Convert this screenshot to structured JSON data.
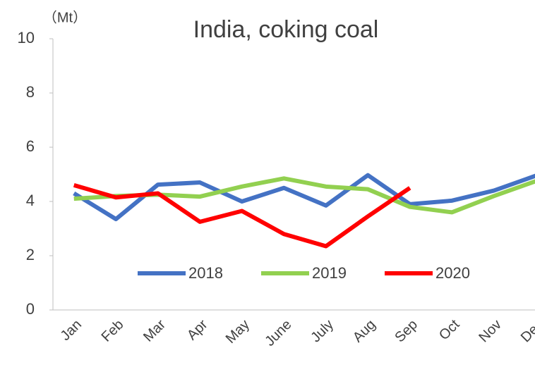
{
  "chart_data": {
    "type": "line",
    "title": "India, coking coal",
    "y_unit": "（Mt）",
    "categories": [
      "Jan",
      "Feb",
      "Mar",
      "Apr",
      "May",
      "June",
      "July",
      "Aug",
      "Sep",
      "Oct",
      "Nov",
      "Dec"
    ],
    "series": [
      {
        "name": "2018",
        "color": "#4472c4",
        "values": [
          4.3,
          3.35,
          4.62,
          4.7,
          4.0,
          4.5,
          3.85,
          4.97,
          3.9,
          4.03,
          4.4,
          4.95
        ]
      },
      {
        "name": "2019",
        "color": "#92d050",
        "values": [
          4.1,
          4.2,
          4.25,
          4.18,
          4.55,
          4.85,
          4.55,
          4.45,
          3.8,
          3.6,
          4.2,
          4.75
        ]
      },
      {
        "name": "2020",
        "color": "#ff0000",
        "values": [
          4.6,
          4.15,
          4.3,
          3.25,
          3.65,
          2.8,
          2.35,
          3.45,
          4.5,
          null,
          null,
          null
        ]
      }
    ],
    "ylim": [
      0,
      10
    ],
    "yticks": [
      0,
      2,
      4,
      6,
      8,
      10
    ],
    "grid": false,
    "legend": "bottom"
  }
}
